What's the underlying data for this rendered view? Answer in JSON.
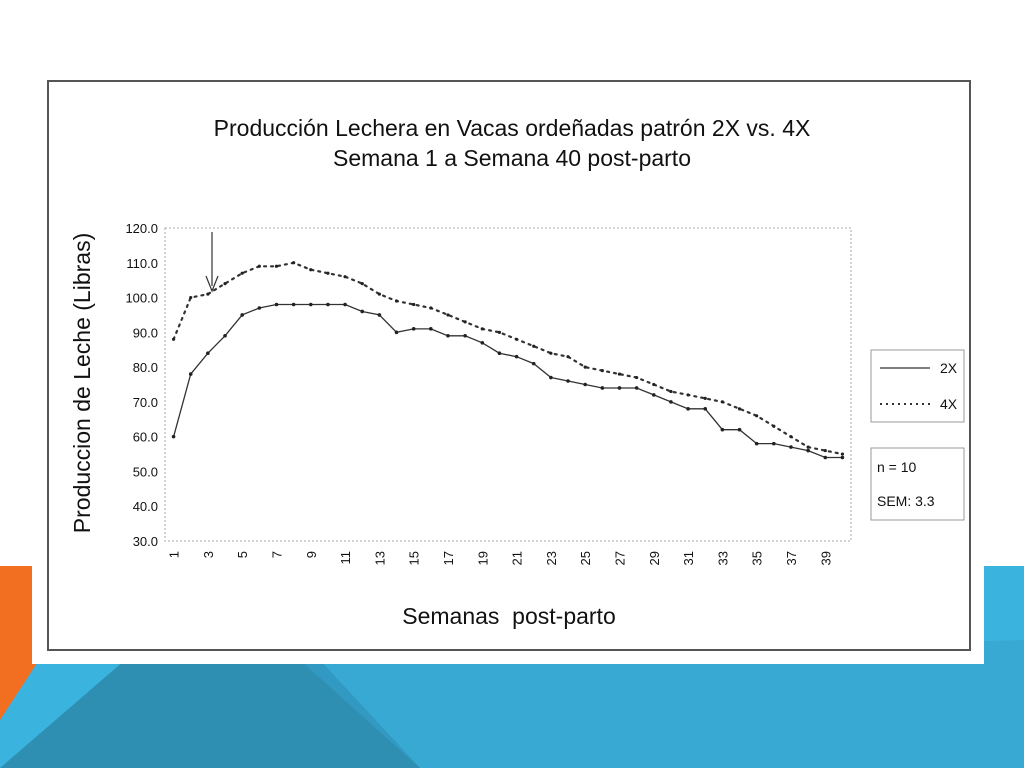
{
  "colors": {
    "orange": "#f26f21",
    "blue": "#3bb3df",
    "blue_dark": "#2e8fb3",
    "blue_mid": "#35a2cb"
  },
  "chart_data": {
    "type": "line",
    "title": "Producción Lechera en Vacas ordeñadas patrón 2X vs. 4X",
    "subtitle": "Semana 1 a Semana 40 post-parto",
    "xlabel": "Semanas  post-parto",
    "ylabel": "Produccion de Leche (Libras)",
    "ylim": [
      30,
      120
    ],
    "yticks": [
      "120.0",
      "110.0",
      "100.0",
      "90.0",
      "80.0",
      "70.0",
      "60.0",
      "50.0",
      "40.0",
      "30.0"
    ],
    "x": [
      1,
      2,
      3,
      4,
      5,
      6,
      7,
      8,
      9,
      10,
      11,
      12,
      13,
      14,
      15,
      16,
      17,
      18,
      19,
      20,
      21,
      22,
      23,
      24,
      25,
      26,
      27,
      28,
      29,
      30,
      31,
      32,
      33,
      34,
      35,
      36,
      37,
      38,
      39,
      40
    ],
    "xtick_labels": [
      "1",
      "3",
      "5",
      "7",
      "9",
      "11",
      "13",
      "15",
      "17",
      "19",
      "21",
      "23",
      "25",
      "27",
      "29",
      "31",
      "33",
      "35",
      "37",
      "39"
    ],
    "series": [
      {
        "name": "2X",
        "style": "solid",
        "values": [
          60,
          78,
          84,
          89,
          95,
          97,
          98,
          98,
          98,
          98,
          98,
          96,
          95,
          90,
          91,
          91,
          89,
          89,
          87,
          84,
          83,
          81,
          77,
          76,
          75,
          74,
          74,
          74,
          72,
          70,
          68,
          68,
          62,
          62,
          58,
          58,
          57,
          56,
          54,
          54
        ]
      },
      {
        "name": "4X",
        "style": "dotted",
        "values": [
          88,
          100,
          101,
          104,
          107,
          109,
          109,
          110,
          108,
          107,
          106,
          104,
          101,
          99,
          98,
          97,
          95,
          93,
          91,
          90,
          88,
          86,
          84,
          83,
          80,
          79,
          78,
          77,
          75,
          73,
          72,
          71,
          70,
          68,
          66,
          63,
          60,
          57,
          56,
          55
        ]
      }
    ],
    "legend_position": "right",
    "annotation_lines": [
      "n = 10",
      "SEM: 3.3"
    ],
    "arrow_at_week": 3,
    "grid": false
  }
}
